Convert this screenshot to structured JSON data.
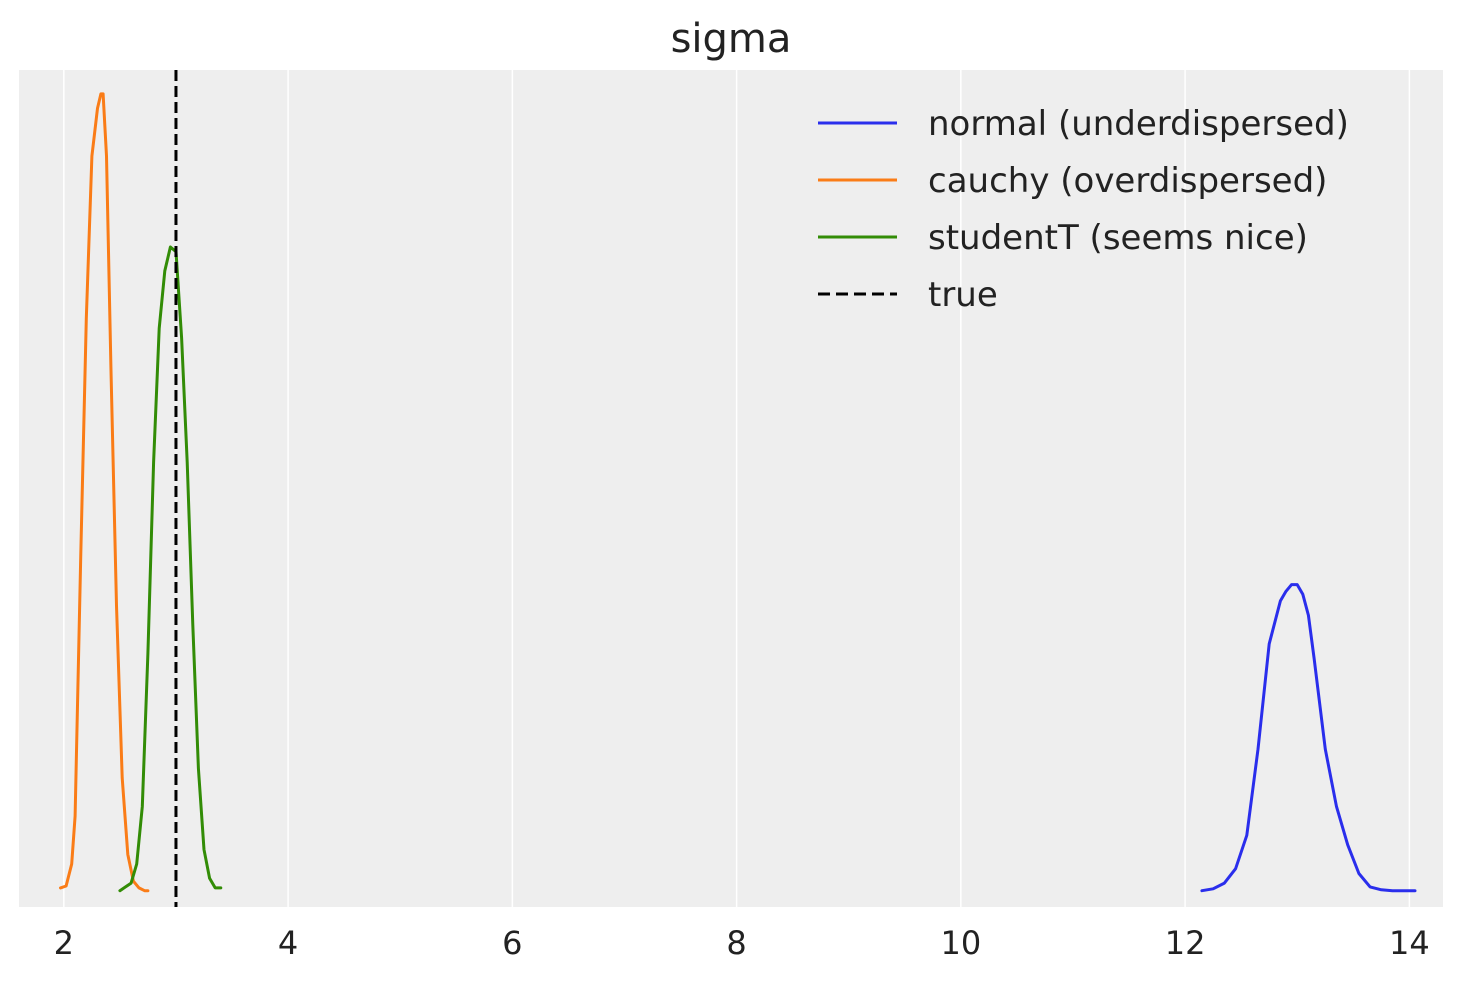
{
  "chart_data": {
    "type": "line",
    "title": "sigma",
    "xlabel": "",
    "ylabel": "",
    "xlim": [
      1.6,
      14.3
    ],
    "ylim": [
      -0.15,
      8.6
    ],
    "x_ticks": [
      2,
      4,
      6,
      8,
      10,
      12,
      14
    ],
    "x_tick_labels": [
      "2",
      "4",
      "6",
      "8",
      "10",
      "12",
      "14"
    ],
    "y_ticks_visible": false,
    "grid": "vertical",
    "legend_position": "top-right",
    "background": "#eeeeee",
    "series": [
      {
        "name": "normal (underdispersed)",
        "color": "#2a2eec",
        "style": "solid",
        "x": [
          12.15,
          12.25,
          12.35,
          12.45,
          12.55,
          12.65,
          12.75,
          12.85,
          12.9,
          12.95,
          13.0,
          13.05,
          13.1,
          13.15,
          13.25,
          13.35,
          13.45,
          13.55,
          13.65,
          13.75,
          13.85,
          13.95,
          14.05
        ],
        "y": [
          0.02,
          0.04,
          0.1,
          0.25,
          0.6,
          1.5,
          2.6,
          3.05,
          3.15,
          3.22,
          3.22,
          3.12,
          2.9,
          2.45,
          1.5,
          0.9,
          0.5,
          0.2,
          0.06,
          0.03,
          0.02,
          0.02,
          0.02
        ]
      },
      {
        "name": "cauchy (overdispersed)",
        "color": "#fa7c17",
        "style": "solid",
        "x": [
          1.97,
          2.02,
          2.07,
          2.1,
          2.15,
          2.2,
          2.25,
          2.3,
          2.33,
          2.35,
          2.38,
          2.42,
          2.47,
          2.52,
          2.57,
          2.62,
          2.67,
          2.72,
          2.75
        ],
        "y": [
          0.05,
          0.07,
          0.3,
          0.8,
          3.5,
          6.0,
          7.7,
          8.2,
          8.35,
          8.35,
          7.7,
          5.5,
          3.0,
          1.2,
          0.4,
          0.12,
          0.05,
          0.02,
          0.02
        ]
      },
      {
        "name": "studentT (seems nice)",
        "color": "#328c06",
        "style": "solid",
        "x": [
          2.5,
          2.6,
          2.65,
          2.7,
          2.75,
          2.8,
          2.85,
          2.9,
          2.95,
          3.0,
          3.05,
          3.1,
          3.15,
          3.2,
          3.25,
          3.3,
          3.35,
          3.4
        ],
        "y": [
          0.02,
          0.1,
          0.3,
          0.9,
          2.5,
          4.5,
          5.9,
          6.5,
          6.75,
          6.7,
          5.8,
          4.5,
          2.8,
          1.3,
          0.45,
          0.15,
          0.05,
          0.05
        ]
      },
      {
        "name": "true",
        "color": "#000000",
        "style": "dashed",
        "vertical_line_x": 3.0
      }
    ]
  }
}
